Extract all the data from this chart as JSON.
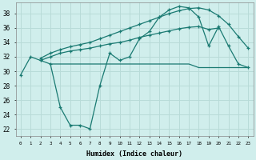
{
  "background_color": "#d0eeec",
  "grid_color": "#b8dbd8",
  "line_color": "#1a7a72",
  "xlabel": "Humidex (Indice chaleur)",
  "xlim": [
    -0.5,
    23.5
  ],
  "ylim": [
    21.0,
    39.5
  ],
  "yticks": [
    22,
    24,
    26,
    28,
    30,
    32,
    34,
    36,
    38
  ],
  "xticks": [
    0,
    1,
    2,
    3,
    4,
    5,
    6,
    7,
    8,
    9,
    10,
    11,
    12,
    13,
    14,
    15,
    16,
    17,
    18,
    19,
    20,
    21,
    22,
    23
  ],
  "line1_x": [
    0,
    1,
    2,
    3,
    4,
    5,
    6,
    7,
    8,
    9,
    10,
    11,
    12,
    13,
    14,
    15,
    16,
    17,
    18,
    19,
    20,
    21,
    22,
    23
  ],
  "line1_y": [
    29.5,
    32.0,
    31.5,
    31.0,
    25.0,
    22.5,
    22.5,
    22.0,
    28.0,
    32.5,
    31.5,
    32.0,
    34.5,
    35.5,
    37.5,
    38.5,
    39.0,
    38.8,
    37.5,
    33.5,
    36.2,
    33.5,
    31.0,
    30.5
  ],
  "line2_x": [
    2,
    3,
    4,
    5,
    6,
    7,
    8,
    9,
    10,
    11,
    12,
    13,
    14,
    15,
    16,
    17,
    18,
    19,
    20
  ],
  "line2_y": [
    31.5,
    32.0,
    32.5,
    32.8,
    33.0,
    33.2,
    33.5,
    33.8,
    34.0,
    34.3,
    34.7,
    35.0,
    35.3,
    35.6,
    35.9,
    36.1,
    36.2,
    35.8,
    36.0
  ],
  "line3_x": [
    2,
    3,
    4,
    5,
    6,
    7,
    8,
    9,
    10,
    11,
    12,
    13,
    14,
    15,
    16,
    17,
    18,
    19,
    20,
    21,
    22,
    23
  ],
  "line3_y": [
    31.8,
    32.5,
    33.0,
    33.4,
    33.7,
    34.0,
    34.5,
    35.0,
    35.5,
    36.0,
    36.5,
    37.0,
    37.5,
    38.0,
    38.4,
    38.7,
    38.8,
    38.5,
    37.7,
    36.5,
    34.8,
    33.2
  ],
  "line4_x": [
    3,
    4,
    5,
    6,
    7,
    8,
    9,
    10,
    11,
    12,
    13,
    14,
    15,
    16,
    17,
    18,
    19,
    20,
    21,
    22,
    23
  ],
  "line4_y": [
    31.0,
    31.0,
    31.0,
    31.0,
    31.0,
    31.0,
    31.0,
    31.0,
    31.0,
    31.0,
    31.0,
    31.0,
    31.0,
    31.0,
    31.0,
    30.5,
    30.5,
    30.5,
    30.5,
    30.5,
    30.5
  ]
}
